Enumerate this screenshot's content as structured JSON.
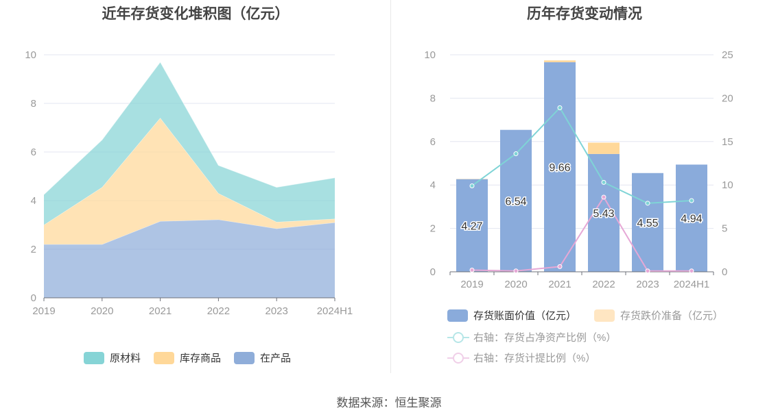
{
  "left_title": "近年存货变化堆积图（亿元）",
  "right_title": "历年存货变动情况",
  "footer": "数据来源：恒生聚源",
  "colors": {
    "raw_material": "#86d4d6",
    "finished_goods": "#ffd899",
    "wip": "#8fadd9",
    "bar_value": "#8aabdb",
    "bar_provision": "#ffd899",
    "line_net_assets": "#7fd4d6",
    "line_provision_ratio": "#e6a8d6",
    "grid": "#e3e6f0",
    "axis_text": "#999999"
  },
  "chart_data": [
    {
      "type": "area",
      "stacked": true,
      "title": "近年存货变化堆积图（亿元）",
      "categories": [
        "2019",
        "2020",
        "2021",
        "2022",
        "2023",
        "2024H1"
      ],
      "ylim": [
        0,
        10
      ],
      "yticks": [
        0,
        2,
        4,
        6,
        8,
        10
      ],
      "grid": true,
      "legend_position": "bottom",
      "series": [
        {
          "name": "在产品",
          "key": "wip",
          "values": [
            2.2,
            2.2,
            3.15,
            3.22,
            2.85,
            3.1
          ]
        },
        {
          "name": "库存商品",
          "key": "finished_goods",
          "values": [
            0.8,
            2.35,
            4.25,
            1.08,
            0.27,
            0.15
          ]
        },
        {
          "name": "原材料",
          "key": "raw_material",
          "values": [
            1.25,
            1.95,
            2.3,
            1.15,
            1.43,
            1.69
          ]
        }
      ],
      "legend_order": [
        "原材料",
        "库存商品",
        "在产品"
      ]
    },
    {
      "type": "bar",
      "stacked": true,
      "title": "历年存货变动情况",
      "categories": [
        "2019",
        "2020",
        "2021",
        "2022",
        "2023",
        "2024H1"
      ],
      "ylim": [
        0,
        10
      ],
      "yticks": [
        0,
        2,
        4,
        6,
        8,
        10
      ],
      "y2lim": [
        0,
        25
      ],
      "y2ticks": [
        0,
        5,
        10,
        15,
        20,
        25
      ],
      "grid": true,
      "legend_position": "bottom",
      "bar_series": [
        {
          "name": "存货账面价值（亿元）",
          "key": "bar_value",
          "values": [
            4.27,
            6.54,
            9.66,
            5.43,
            4.55,
            4.94
          ],
          "labels": [
            "4.27",
            "6.54",
            "9.66",
            "5.43",
            "4.55",
            "4.94"
          ]
        },
        {
          "name": "存货跌价准备（亿元）",
          "key": "bar_provision",
          "values": [
            0.01,
            0.0,
            0.08,
            0.52,
            0.0,
            0.0
          ]
        }
      ],
      "line_series": [
        {
          "name": "右轴：存货占净资产比例（%）",
          "key": "line_net_assets",
          "axis": "right",
          "values": [
            9.9,
            13.6,
            18.9,
            10.3,
            7.9,
            8.2
          ]
        },
        {
          "name": "右轴：存货计提比例（%）",
          "key": "line_provision_ratio",
          "axis": "right",
          "values": [
            0.2,
            0.1,
            0.6,
            8.6,
            0.1,
            0.1
          ]
        }
      ]
    }
  ]
}
